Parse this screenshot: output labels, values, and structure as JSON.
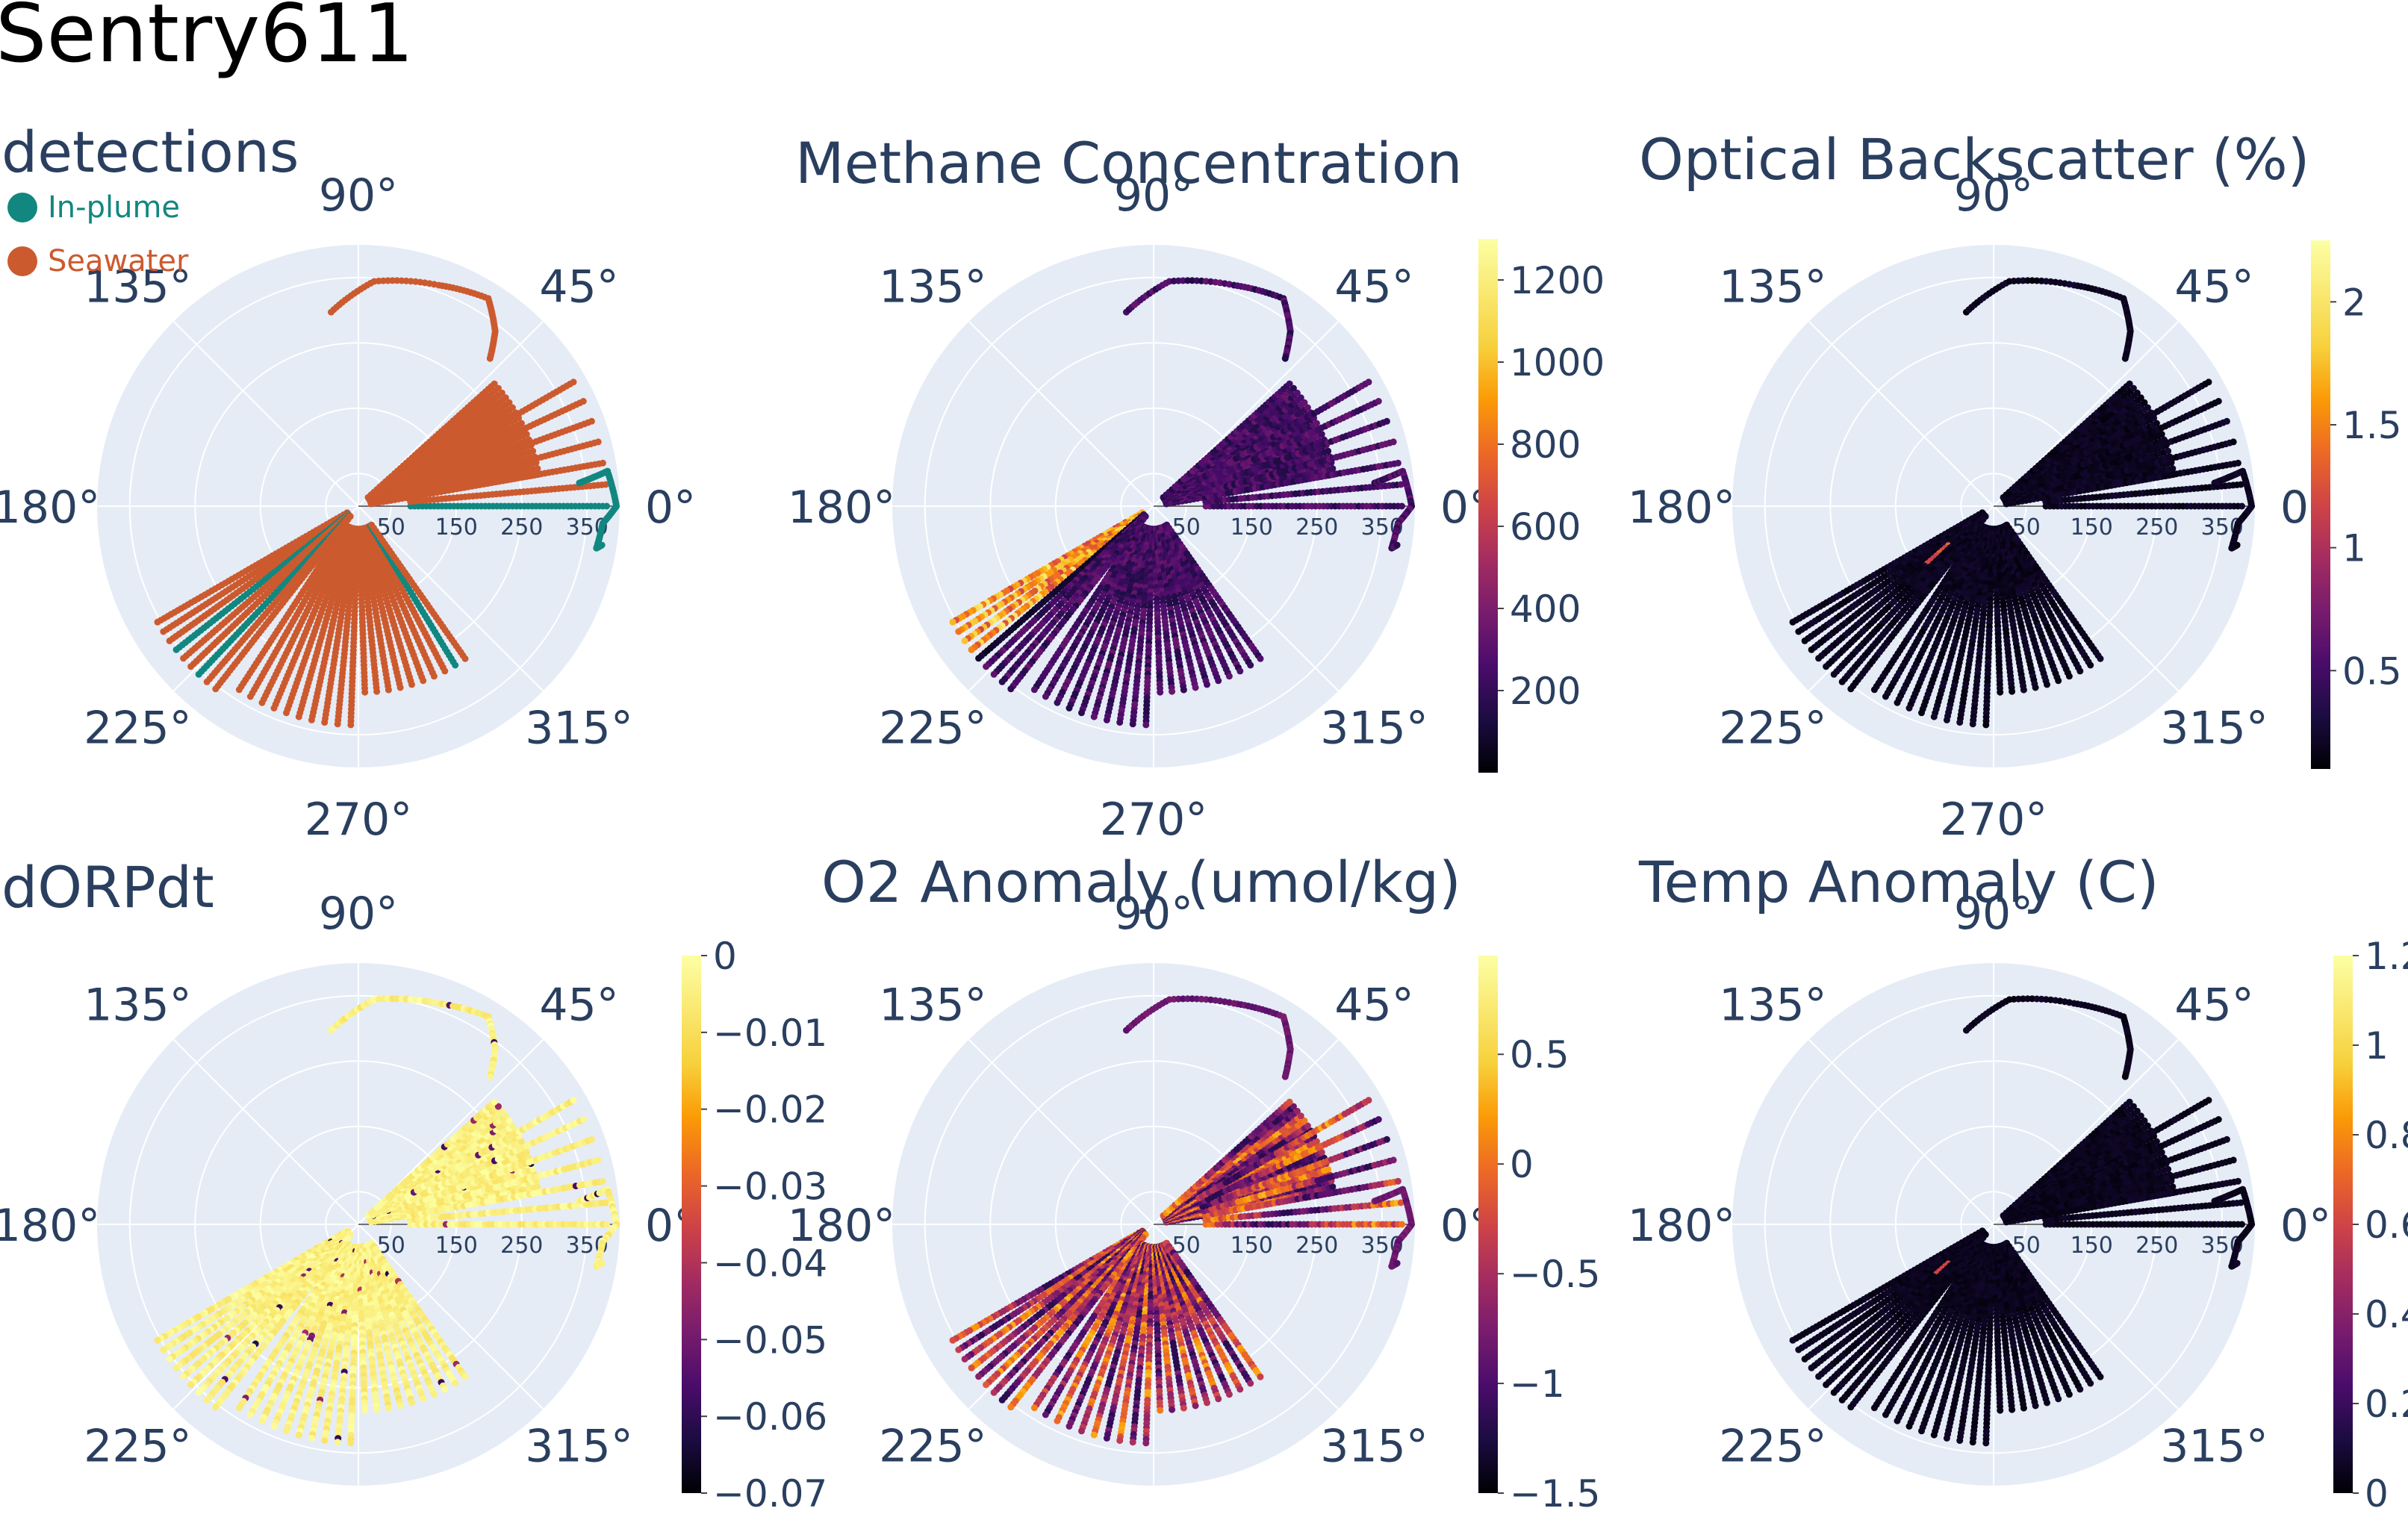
{
  "figure": {
    "title": "Sentry611"
  },
  "chart_data": [
    {
      "type": "scatter",
      "subtype": "polar",
      "title": "detections",
      "angular_ticks": [
        "0°",
        "45°",
        "90°",
        "135°",
        "180°",
        "225°",
        "270°",
        "315°"
      ],
      "radial_ticks": [
        "50",
        "150",
        "250",
        "350"
      ],
      "radial_range": [
        0,
        400
      ],
      "legend": {
        "placement": "top-left",
        "entries": [
          {
            "name": "In-plume",
            "color": "#12877f"
          },
          {
            "name": "Seawater",
            "color": "#cc5a2f"
          }
        ]
      },
      "color_mode": "categorical"
    },
    {
      "type": "scatter",
      "subtype": "polar",
      "title": "Methane Concentration",
      "angular_ticks": [
        "0°",
        "45°",
        "90°",
        "135°",
        "180°",
        "225°",
        "270°",
        "315°"
      ],
      "radial_ticks": [
        "50",
        "150",
        "250",
        "350"
      ],
      "radial_range": [
        0,
        400
      ],
      "colorbar": {
        "colorscale": "inferno",
        "range": [
          0,
          1300
        ],
        "ticks": [
          "200",
          "400",
          "600",
          "800",
          "1000",
          "1200"
        ],
        "tick_values": [
          200,
          400,
          600,
          800,
          1000,
          1200
        ]
      },
      "color_mode": "methane"
    },
    {
      "type": "scatter",
      "subtype": "polar",
      "title": "Optical Backscatter (%)",
      "angular_ticks": [
        "0°",
        "45°",
        "90°",
        "135°",
        "180°",
        "225°",
        "270°",
        "315°"
      ],
      "radial_ticks": [
        "50",
        "150",
        "250",
        "350"
      ],
      "radial_range": [
        0,
        400
      ],
      "colorbar": {
        "colorscale": "inferno",
        "range": [
          0.1,
          2.25
        ],
        "ticks": [
          "0.5",
          "1",
          "1.5",
          "2"
        ],
        "tick_values": [
          0.5,
          1,
          1.5,
          2
        ]
      },
      "color_mode": "obs"
    },
    {
      "type": "scatter",
      "subtype": "polar",
      "title": "dORPdt",
      "angular_ticks": [
        "0°",
        "45°",
        "90°",
        "135°",
        "180°",
        "225°",
        "270°",
        "315°"
      ],
      "radial_ticks": [
        "50",
        "150",
        "250",
        "350"
      ],
      "radial_range": [
        0,
        400
      ],
      "colorbar": {
        "colorscale": "inferno",
        "range": [
          -0.07,
          0.0
        ],
        "ticks": [
          "0",
          "−0.01",
          "−0.02",
          "−0.03",
          "−0.04",
          "−0.05",
          "−0.06",
          "−0.07"
        ],
        "tick_values": [
          0,
          -0.01,
          -0.02,
          -0.03,
          -0.04,
          -0.05,
          -0.06,
          -0.07
        ]
      },
      "color_mode": "dorp"
    },
    {
      "type": "scatter",
      "subtype": "polar",
      "title": "O2 Anomaly (umol/kg)",
      "angular_ticks": [
        "0°",
        "45°",
        "90°",
        "135°",
        "180°",
        "225°",
        "270°",
        "315°"
      ],
      "radial_ticks": [
        "50",
        "150",
        "250",
        "350"
      ],
      "radial_range": [
        0,
        400
      ],
      "colorbar": {
        "colorscale": "inferno",
        "range": [
          -1.5,
          0.95
        ],
        "ticks": [
          "0.5",
          "0",
          "−0.5",
          "−1",
          "−1.5"
        ],
        "tick_values": [
          0.5,
          0,
          -0.5,
          -1,
          -1.5
        ]
      },
      "color_mode": "o2"
    },
    {
      "type": "scatter",
      "subtype": "polar",
      "title": "Temp Anomaly (C)",
      "angular_ticks": [
        "0°",
        "45°",
        "90°",
        "135°",
        "180°",
        "225°",
        "270°",
        "315°"
      ],
      "radial_ticks": [
        "50",
        "150",
        "250",
        "350"
      ],
      "radial_range": [
        0,
        400
      ],
      "colorbar": {
        "colorscale": "inferno",
        "range": [
          0,
          1.2
        ],
        "ticks": [
          "1.2",
          "1",
          "0.8",
          "0.6",
          "0.4",
          "0.2",
          "0"
        ],
        "tick_values": [
          1.2,
          1.0,
          0.8,
          0.6,
          0.4,
          0.2,
          0.0
        ]
      },
      "color_mode": "temp"
    }
  ],
  "colors": {
    "polar_bg": "#e5ecf6",
    "grid": "#ffffff",
    "text": "#2a3f5f",
    "in_plume": "#12877f",
    "seawater": "#cc5a2f"
  }
}
